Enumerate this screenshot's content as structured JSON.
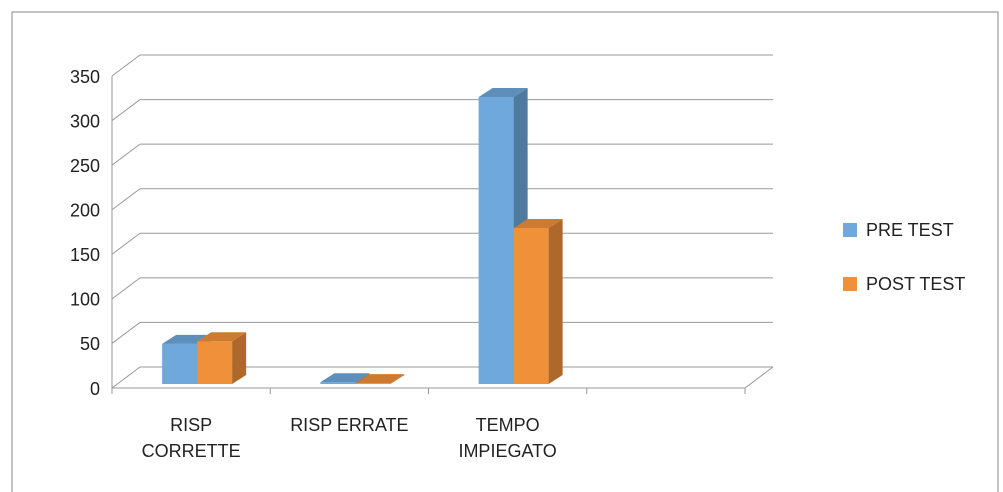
{
  "chart_data": {
    "type": "bar",
    "categories": [
      "RISP CORRETTE",
      "RISP ERRATE",
      "TEMPO IMPIEGATO",
      null
    ],
    "series": [
      {
        "name": "PRE TEST",
        "color": "#6fa8dc",
        "values": [
          45,
          2,
          322,
          null
        ]
      },
      {
        "name": "POST TEST",
        "color": "#f0913a",
        "values": [
          48,
          1,
          175,
          null
        ]
      }
    ],
    "ylim": [
      0,
      350
    ],
    "yticks": [
      0,
      50,
      100,
      150,
      200,
      250,
      300,
      350
    ],
    "grid": true,
    "legend": "right"
  }
}
